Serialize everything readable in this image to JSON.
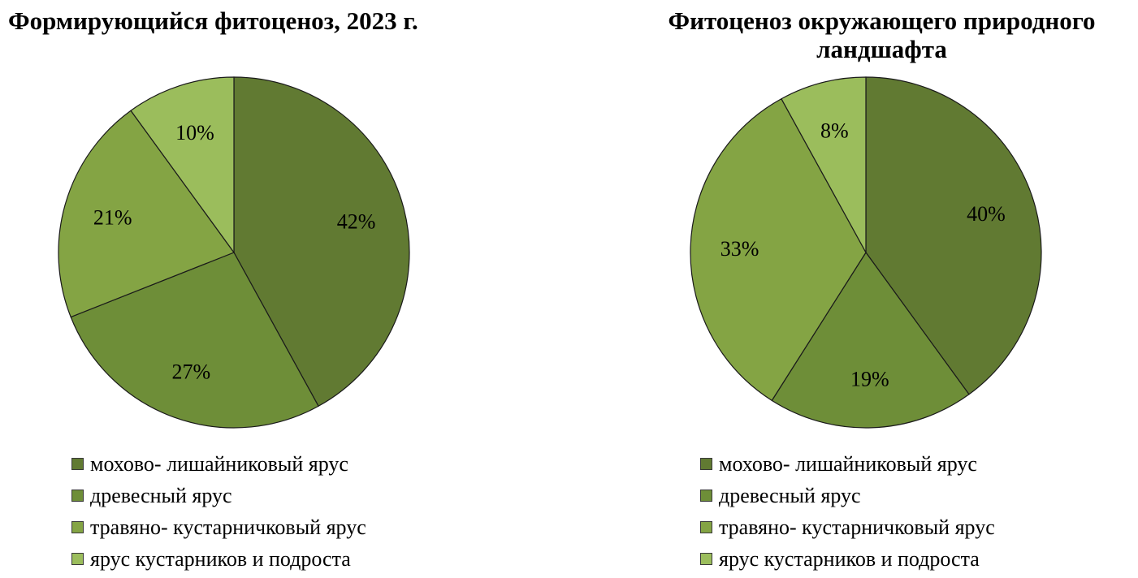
{
  "chart_data": [
    {
      "type": "pie",
      "title": "Формирующийся фитоценоз, 2023 г.",
      "categories": [
        "мохово- лишайниковый ярус",
        "древесный ярус",
        "травяно- кустарничковый ярус",
        "ярус кустарников и подроста"
      ],
      "values": [
        42,
        27,
        21,
        10
      ],
      "labels": [
        "42%",
        "27%",
        "21%",
        "10%"
      ],
      "colors": [
        "#617a32",
        "#6e8e38",
        "#84a444",
        "#9bbd5c"
      ],
      "legend_position": "bottom"
    },
    {
      "type": "pie",
      "title": "Фитоценоз окружающего природного ландшафта",
      "categories": [
        "мохово- лишайниковый ярус",
        "древесный ярус",
        "травяно- кустарничковый ярус",
        "ярус кустарников и подроста"
      ],
      "values": [
        40,
        19,
        33,
        8
      ],
      "labels": [
        "40%",
        "19%",
        "33%",
        "8%"
      ],
      "colors": [
        "#617a32",
        "#6e8e38",
        "#84a444",
        "#9bbd5c"
      ],
      "legend_position": "bottom"
    }
  ]
}
